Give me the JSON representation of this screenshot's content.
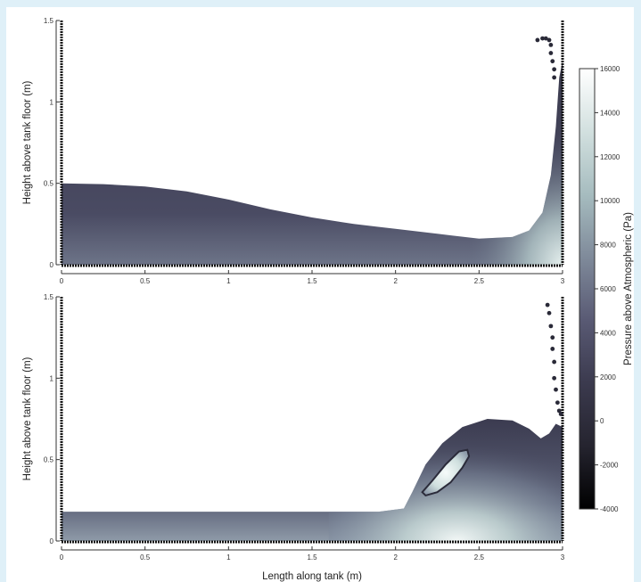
{
  "chart_data": {
    "type": "scatter",
    "colormap": {
      "label": "Pressure above Atmospheric (Pa)",
      "range": [
        -4000,
        16000
      ],
      "ticks": [
        -4000,
        -2000,
        0,
        2000,
        4000,
        6000,
        8000,
        10000,
        12000,
        14000,
        16000
      ],
      "tick_labels": [
        "-4000",
        "-2000",
        "0",
        "2000",
        "4000",
        "6000",
        "8000",
        "10000",
        "12000",
        "14000",
        "16000"
      ],
      "colors": [
        "#000000",
        "#25242f",
        "#3b3a4e",
        "#595a74",
        "#7f8a9a",
        "#a6bcbf",
        "#d2e0df",
        "#ffffff"
      ]
    },
    "panels": [
      {
        "ylabel": "Height above tank floor (m)",
        "xlabel": "",
        "xlim": [
          0,
          3
        ],
        "ylim": [
          0,
          1.5
        ],
        "xticks": [
          0,
          0.5,
          1,
          1.5,
          2,
          2.5,
          3
        ],
        "xtick_labels": [
          "0",
          "0.5",
          "1",
          "1.5",
          "2",
          "2.5",
          "3"
        ],
        "yticks": [
          0,
          0.5,
          1,
          1.5
        ],
        "ytick_labels": [
          "0",
          "0.5",
          "1",
          "1.5"
        ],
        "free_surface": [
          [
            0,
            0.5
          ],
          [
            0.25,
            0.495
          ],
          [
            0.5,
            0.48
          ],
          [
            0.75,
            0.45
          ],
          [
            1.0,
            0.4
          ],
          [
            1.25,
            0.34
          ],
          [
            1.5,
            0.29
          ],
          [
            1.75,
            0.25
          ],
          [
            2.0,
            0.22
          ],
          [
            2.25,
            0.19
          ],
          [
            2.5,
            0.16
          ],
          [
            2.7,
            0.17
          ],
          [
            2.8,
            0.21
          ],
          [
            2.88,
            0.32
          ],
          [
            2.93,
            0.55
          ],
          [
            2.96,
            0.85
          ],
          [
            2.98,
            1.15
          ],
          [
            3.0,
            1.25
          ]
        ],
        "spray": [
          [
            2.85,
            1.38
          ],
          [
            2.88,
            1.39
          ],
          [
            2.9,
            1.39
          ],
          [
            2.92,
            1.38
          ],
          [
            2.93,
            1.35
          ],
          [
            2.93,
            1.3
          ],
          [
            2.94,
            1.25
          ],
          [
            2.95,
            1.2
          ],
          [
            2.95,
            1.15
          ]
        ]
      },
      {
        "ylabel": "Height above tank floor (m)",
        "xlabel": "Length along tank (m)",
        "xlim": [
          0,
          3
        ],
        "ylim": [
          0,
          1.5
        ],
        "xticks": [
          0,
          0.5,
          1,
          1.5,
          2,
          2.5,
          3
        ],
        "xtick_labels": [
          "0",
          "0.5",
          "1",
          "1.5",
          "2",
          "2.5",
          "3"
        ],
        "yticks": [
          0,
          0.5,
          1,
          1.5
        ],
        "ytick_labels": [
          "0",
          "0.5",
          "1",
          "1.5"
        ],
        "free_surface": [
          [
            0,
            0.18
          ],
          [
            0.5,
            0.18
          ],
          [
            1.0,
            0.18
          ],
          [
            1.5,
            0.18
          ],
          [
            1.9,
            0.18
          ],
          [
            2.05,
            0.2
          ],
          [
            2.1,
            0.3
          ],
          [
            2.18,
            0.47
          ],
          [
            2.28,
            0.6
          ],
          [
            2.4,
            0.7
          ],
          [
            2.55,
            0.75
          ],
          [
            2.7,
            0.74
          ],
          [
            2.8,
            0.69
          ],
          [
            2.87,
            0.63
          ],
          [
            2.92,
            0.66
          ],
          [
            2.96,
            0.72
          ],
          [
            3.0,
            0.7
          ]
        ],
        "cavity": [
          [
            2.16,
            0.3
          ],
          [
            2.22,
            0.37
          ],
          [
            2.3,
            0.47
          ],
          [
            2.38,
            0.55
          ],
          [
            2.43,
            0.56
          ],
          [
            2.44,
            0.52
          ],
          [
            2.4,
            0.45
          ],
          [
            2.33,
            0.36
          ],
          [
            2.25,
            0.3
          ],
          [
            2.18,
            0.28
          ]
        ],
        "spray": [
          [
            2.91,
            1.45
          ],
          [
            2.92,
            1.4
          ],
          [
            2.93,
            1.32
          ],
          [
            2.94,
            1.25
          ],
          [
            2.94,
            1.18
          ],
          [
            2.95,
            1.1
          ],
          [
            2.95,
            1.0
          ],
          [
            2.96,
            0.93
          ],
          [
            2.97,
            0.85
          ],
          [
            2.98,
            0.8
          ],
          [
            2.99,
            0.78
          ]
        ]
      }
    ]
  }
}
